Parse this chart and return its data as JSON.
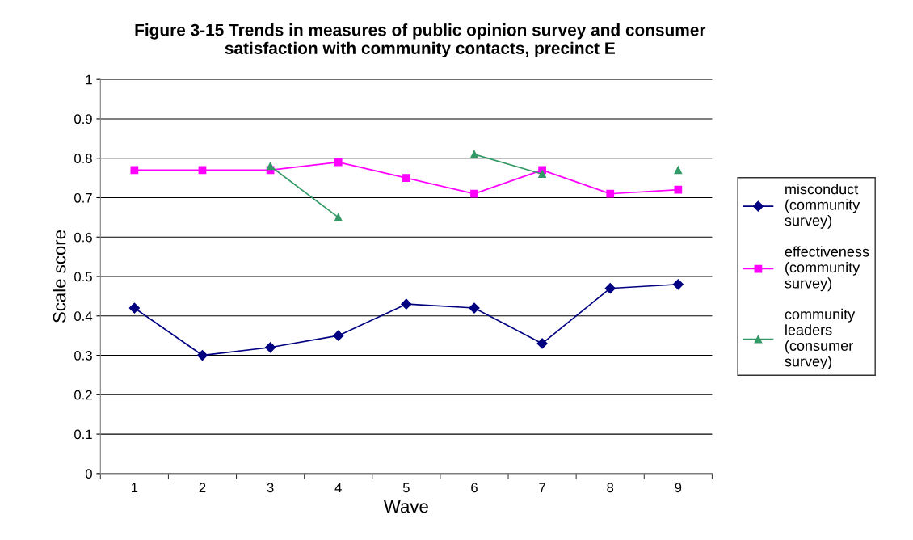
{
  "chart_data": {
    "type": "line",
    "title": "Figure 3-15 Trends in measures of public opinion survey and consumer\nsatisfaction with community contacts, precinct E",
    "xlabel": "Wave",
    "ylabel": "Scale score",
    "categories": [
      "1",
      "2",
      "3",
      "4",
      "5",
      "6",
      "7",
      "8",
      "9"
    ],
    "series": [
      {
        "name": "misconduct\n(community\nsurvey)",
        "color": "#000080",
        "marker": "diamond",
        "values": [
          0.42,
          0.3,
          0.32,
          0.35,
          0.43,
          0.42,
          0.33,
          0.47,
          0.48
        ]
      },
      {
        "name": "effectiveness\n(community\nsurvey)",
        "color": "#ff00ff",
        "marker": "square",
        "values": [
          0.77,
          0.77,
          0.77,
          0.79,
          0.75,
          0.71,
          0.77,
          0.71,
          0.72
        ]
      },
      {
        "name": "community\nleaders\n(consumer\nsurvey)",
        "color": "#339966",
        "marker": "triangle",
        "values": [
          null,
          null,
          0.78,
          0.65,
          null,
          0.81,
          0.76,
          null,
          0.77
        ]
      }
    ],
    "ylim": [
      0,
      1
    ],
    "yticks": [
      0,
      0.1,
      0.2,
      0.3,
      0.4,
      0.5,
      0.6,
      0.7,
      0.8,
      0.9,
      1
    ],
    "grid": "y",
    "legend": "right"
  }
}
